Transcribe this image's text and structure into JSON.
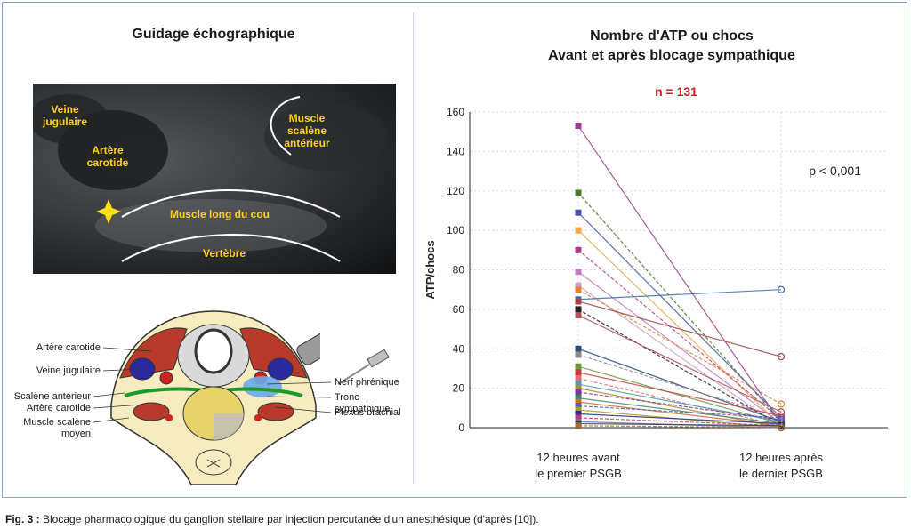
{
  "left_panel": {
    "title": "Guidage échographique",
    "ultrasound_labels": {
      "veine": "Veine jugulaire",
      "artere": "Artère carotide",
      "muscle_scalene": "Muscle scalène antérieur",
      "muscle_long": "Muscle long du cou",
      "vertebre": "Vertèbre"
    },
    "anatomy_labels_left": {
      "artere_carotide_1": "Artère carotide",
      "veine_jugulaire": "Veine jugulaire",
      "scalene_anterieur": "Scalène antérieur",
      "artere_carotide_2": "Artère carotide",
      "muscle_scalene_moyen": "Muscle scalène moyen"
    },
    "anatomy_labels_right": {
      "nerf_phrenique": "Nerf phrénique",
      "tronc_sympathique": "Tronc sympathique",
      "plexus_brachial": "Plexus brachial"
    }
  },
  "chart_data": {
    "type": "line",
    "title": "Nombre d'ATP ou chocs",
    "subtitle": "Avant et après blocage sympathique",
    "annotation_n": "n = 131",
    "annotation_p": "p < 0,001",
    "ylabel": "ATP/chocs",
    "ylim": [
      0,
      160
    ],
    "yticks": [
      0,
      20,
      40,
      60,
      80,
      100,
      120,
      140,
      160
    ],
    "categories": [
      "12 heures avant le premier PSGB",
      "12 heures après le dernier PSGB"
    ],
    "category_lines": [
      [
        "12 heures avant",
        "le premier PSGB"
      ],
      [
        "12 heures après",
        "le dernier PSGB"
      ]
    ],
    "grid": true,
    "series": [
      {
        "values": [
          153,
          2
        ],
        "color": "#9a3c8f"
      },
      {
        "values": [
          119,
          3
        ],
        "color": "#4a7a2a"
      },
      {
        "values": [
          109,
          5
        ],
        "color": "#4a55a8"
      },
      {
        "values": [
          100,
          1
        ],
        "color": "#e8a94a"
      },
      {
        "values": [
          90,
          4
        ],
        "color": "#b03a8a"
      },
      {
        "values": [
          79,
          2
        ],
        "color": "#c07ac0"
      },
      {
        "values": [
          72,
          0
        ],
        "color": "#c8a0d0"
      },
      {
        "values": [
          70,
          12
        ],
        "color": "#e0823a"
      },
      {
        "values": [
          65,
          70
        ],
        "color": "#3a6ab0"
      },
      {
        "values": [
          64,
          36
        ],
        "color": "#a04848"
      },
      {
        "values": [
          60,
          1
        ],
        "color": "#222222"
      },
      {
        "values": [
          57,
          8
        ],
        "color": "#b05050"
      },
      {
        "values": [
          40,
          3
        ],
        "color": "#2a4a7a"
      },
      {
        "values": [
          37,
          5
        ],
        "color": "#8a8a8a"
      },
      {
        "values": [
          31,
          2
        ],
        "color": "#6a9a3a"
      },
      {
        "values": [
          28,
          6
        ],
        "color": "#c04040"
      },
      {
        "values": [
          25,
          1
        ],
        "color": "#e07070"
      },
      {
        "values": [
          22,
          3
        ],
        "color": "#4a9ab0"
      },
      {
        "values": [
          20,
          0
        ],
        "color": "#b08a2a"
      },
      {
        "values": [
          18,
          4
        ],
        "color": "#7a3a9a"
      },
      {
        "values": [
          15,
          2
        ],
        "color": "#3a8a6a"
      },
      {
        "values": [
          13,
          1
        ],
        "color": "#d06a2a"
      },
      {
        "values": [
          11,
          5
        ],
        "color": "#5a5ab0"
      },
      {
        "values": [
          9,
          0
        ],
        "color": "#a0a020"
      },
      {
        "values": [
          7,
          2
        ],
        "color": "#2a2a8a"
      },
      {
        "values": [
          5,
          1
        ],
        "color": "#c03a6a"
      },
      {
        "values": [
          3,
          0
        ],
        "color": "#6a6aca"
      },
      {
        "values": [
          2,
          1
        ],
        "color": "#3a3a3a"
      },
      {
        "values": [
          1,
          0
        ],
        "color": "#9a6a3a"
      }
    ]
  },
  "caption": {
    "prefix": "Fig. 3 :",
    "text": " Blocage pharmacologique du ganglion stellaire par injection percutanée d'un anesthésique (d'après [10])."
  }
}
